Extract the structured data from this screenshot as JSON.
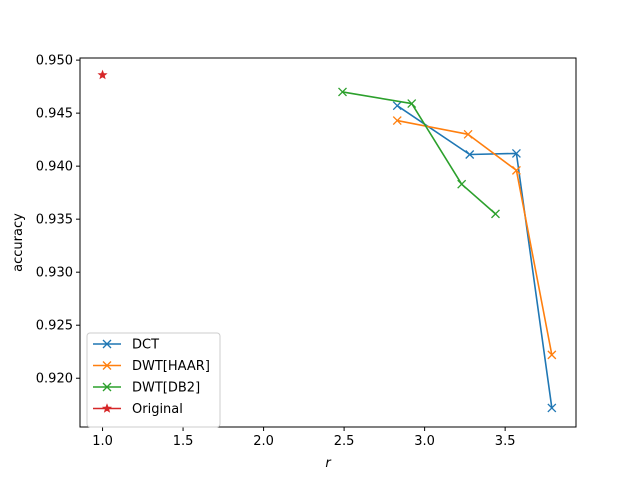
{
  "chart_data": {
    "type": "line",
    "title": "",
    "xlabel": "r",
    "ylabel": "accuracy",
    "xlim": [
      0.86,
      3.94
    ],
    "ylim": [
      0.9154,
      0.9502
    ],
    "xticks": [
      1.0,
      1.5,
      2.0,
      2.5,
      3.0,
      3.5
    ],
    "xtick_labels": [
      "1.0",
      "1.5",
      "2.0",
      "2.5",
      "3.0",
      "3.5"
    ],
    "yticks": [
      0.92,
      0.925,
      0.93,
      0.935,
      0.94,
      0.945,
      0.95
    ],
    "ytick_labels": [
      "0.920",
      "0.925",
      "0.930",
      "0.935",
      "0.940",
      "0.945",
      "0.950"
    ],
    "grid": false,
    "legend_position": "lower-left",
    "series": [
      {
        "name": "DCT",
        "color": "#1f77b4",
        "marker": "x",
        "x": [
          2.83,
          3.28,
          3.57,
          3.79
        ],
        "y": [
          0.9457,
          0.9411,
          0.9412,
          0.9172
        ]
      },
      {
        "name": "DWT[HAAR]",
        "color": "#ff7f0e",
        "marker": "x",
        "x": [
          2.83,
          3.27,
          3.57,
          3.79
        ],
        "y": [
          0.9443,
          0.943,
          0.9396,
          0.9222
        ]
      },
      {
        "name": "DWT[DB2]",
        "color": "#2ca02c",
        "marker": "x",
        "x": [
          2.49,
          2.92,
          3.23,
          3.44
        ],
        "y": [
          0.947,
          0.9459,
          0.9383,
          0.9355
        ]
      },
      {
        "name": "Original",
        "color": "#d62728",
        "marker": "star",
        "x": [
          1.0
        ],
        "y": [
          0.9486
        ]
      }
    ]
  }
}
